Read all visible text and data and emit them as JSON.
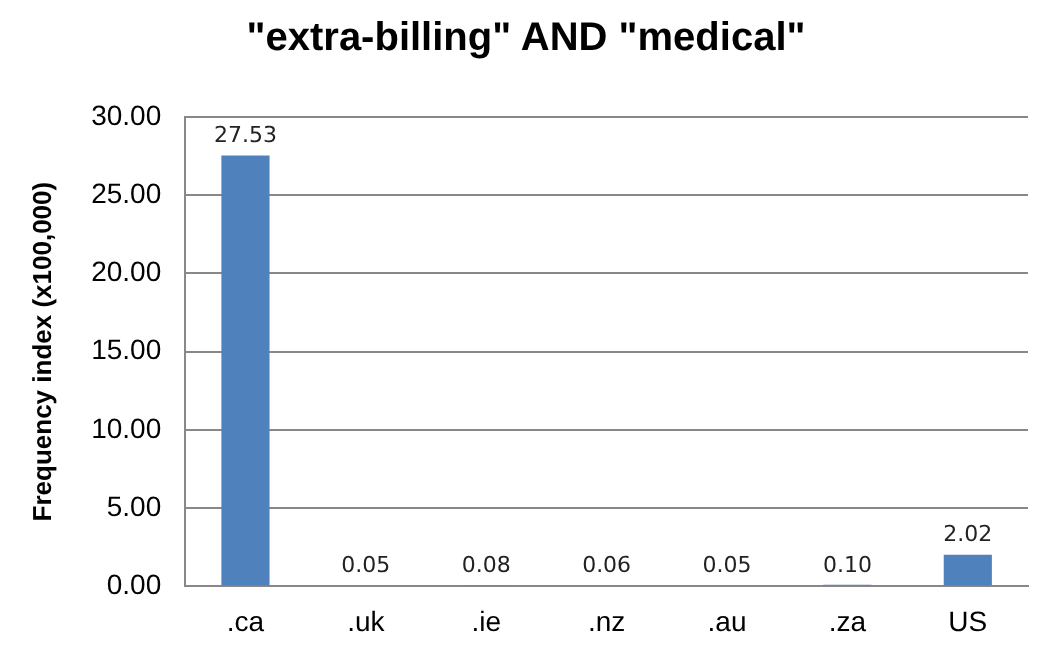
{
  "chart_data": {
    "type": "bar",
    "title": "\"extra-billing\" AND \"medical\"",
    "ylabel": "Frequency index (x100,000)",
    "categories": [
      ".ca",
      ".uk",
      ".ie",
      ".nz",
      ".au",
      ".za",
      "US"
    ],
    "values": [
      27.53,
      0.05,
      0.08,
      0.06,
      0.05,
      0.1,
      2.02
    ],
    "value_labels": [
      "27.53",
      "0.05",
      "0.08",
      "0.06",
      "0.05",
      "0.10",
      "2.02"
    ],
    "color": "#4f81bd",
    "ylim": [
      0,
      30
    ],
    "yticks": [
      {
        "value": 0,
        "label": "0.00"
      },
      {
        "value": 5,
        "label": "5.00"
      },
      {
        "value": 10,
        "label": "10.00"
      },
      {
        "value": 15,
        "label": "15.00"
      },
      {
        "value": 20,
        "label": "20.00"
      },
      {
        "value": 25,
        "label": "25.00"
      },
      {
        "value": 30,
        "label": "30.00"
      }
    ],
    "grid": "y",
    "legend": false
  }
}
